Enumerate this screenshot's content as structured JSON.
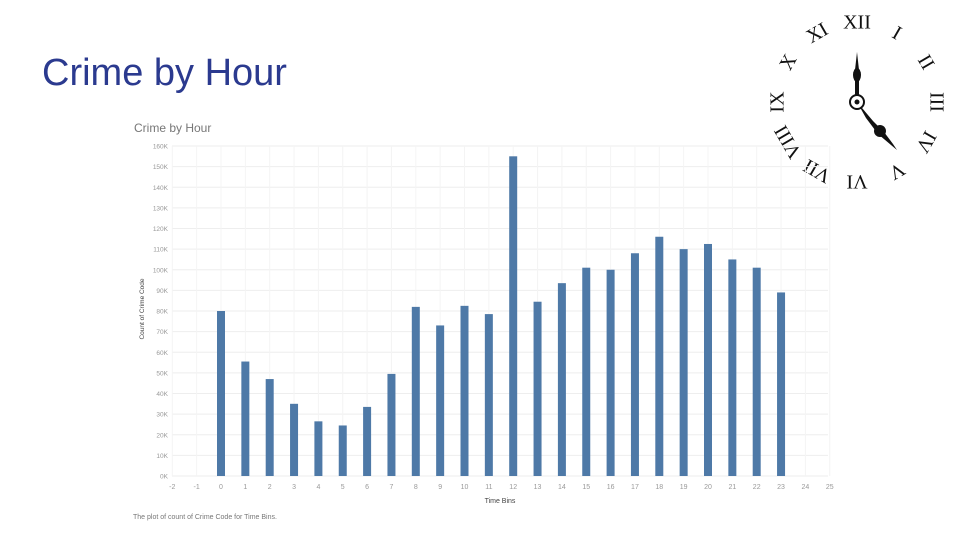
{
  "slide": {
    "title": "Crime by Hour",
    "caption": "The plot of count of Crime Code for Time Bins."
  },
  "colors": {
    "title": "#2b3a8f",
    "bar": "#4e79a7",
    "grid": "#eeeeee",
    "axis_text": "#999999",
    "clock": "#111111"
  },
  "clock": {
    "numerals": [
      "XII",
      "I",
      "II",
      "III",
      "IV",
      "V",
      "VI",
      "VII",
      "VIII",
      "IX",
      "X",
      "XI"
    ],
    "time_shown": "4:00"
  },
  "chart_data": {
    "type": "bar",
    "title": "Crime by Hour",
    "xlabel": "Time Bins",
    "ylabel": "Count of Crime Code",
    "x_ticks": [
      -2,
      -1,
      0,
      1,
      2,
      3,
      4,
      5,
      6,
      7,
      8,
      9,
      10,
      11,
      12,
      13,
      14,
      15,
      16,
      17,
      18,
      19,
      20,
      21,
      22,
      23,
      24,
      25
    ],
    "y_ticks": [
      "0K",
      "10K",
      "20K",
      "30K",
      "40K",
      "50K",
      "60K",
      "70K",
      "80K",
      "90K",
      "100K",
      "110K",
      "120K",
      "130K",
      "140K",
      "150K",
      "160K"
    ],
    "ylim": [
      0,
      160000
    ],
    "xlim": [
      -2,
      25
    ],
    "grid": true,
    "categories": [
      0,
      1,
      2,
      3,
      4,
      5,
      6,
      7,
      8,
      9,
      10,
      11,
      12,
      13,
      14,
      15,
      16,
      17,
      18,
      19,
      20,
      21,
      22,
      23
    ],
    "values": [
      80000,
      55500,
      47000,
      35000,
      26500,
      24500,
      33500,
      49500,
      82000,
      73000,
      82500,
      78500,
      155000,
      84500,
      93500,
      101000,
      100000,
      108000,
      116000,
      110000,
      112500,
      105000,
      101000,
      89000
    ]
  }
}
